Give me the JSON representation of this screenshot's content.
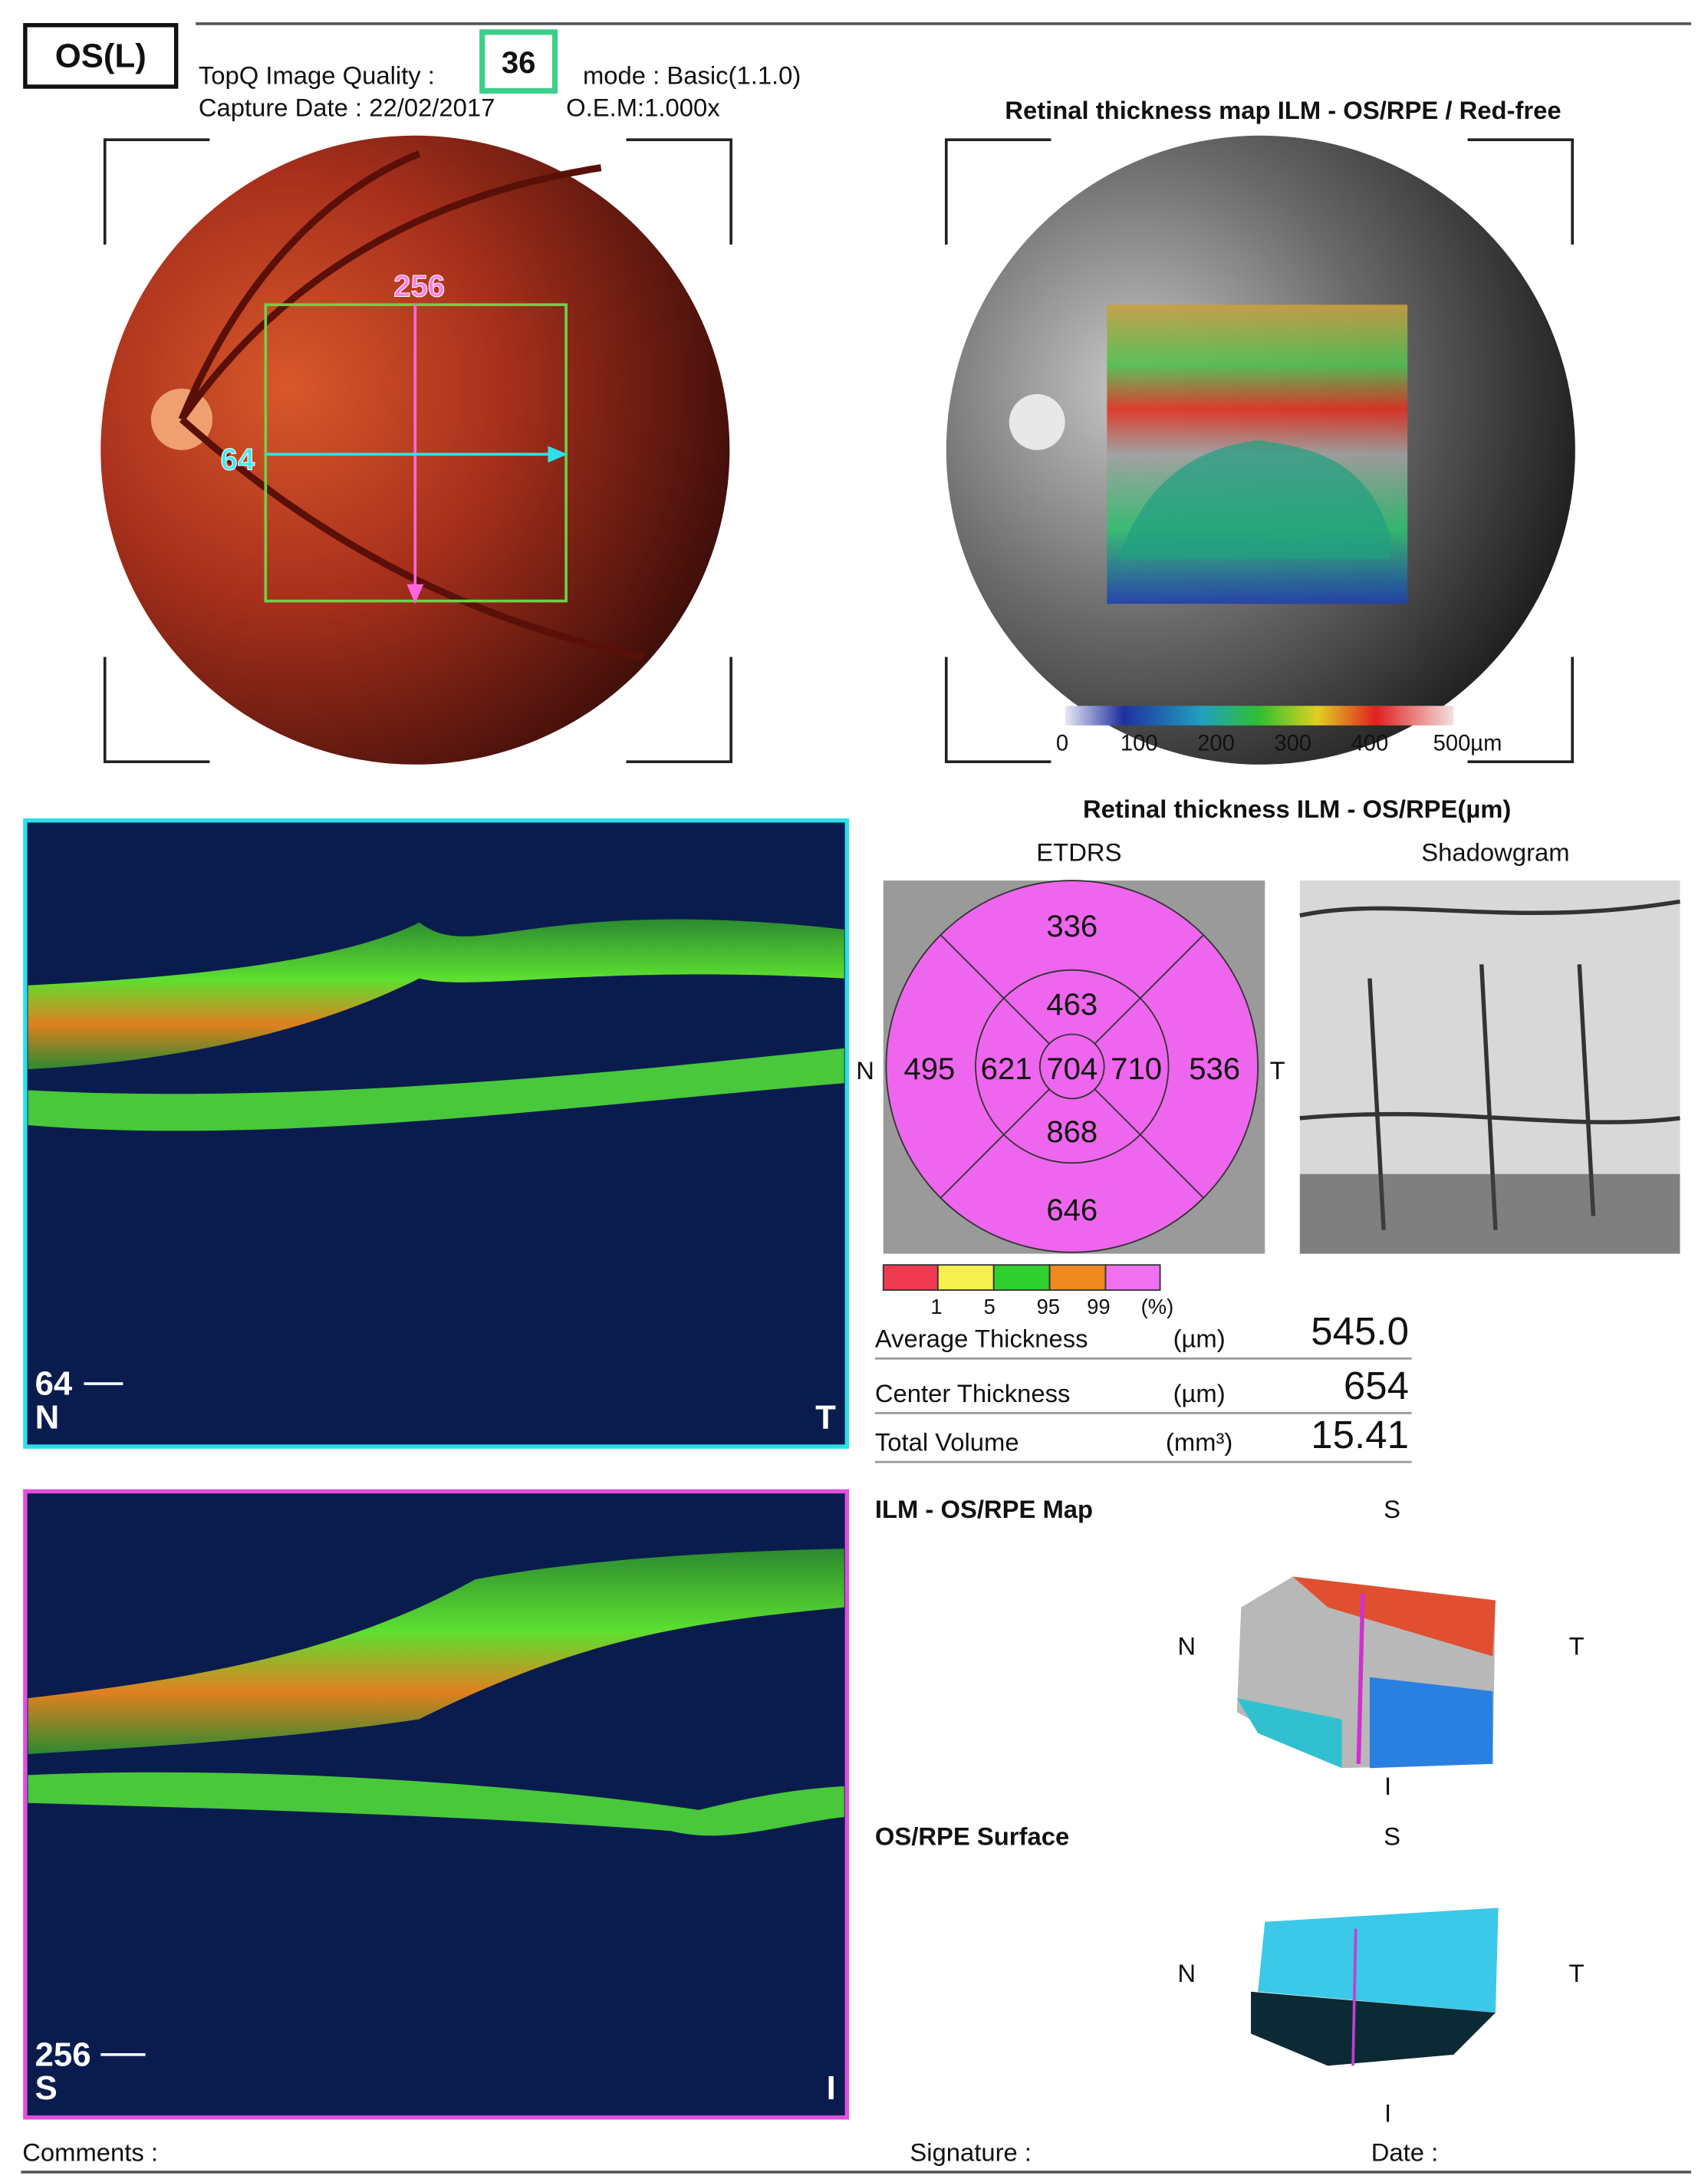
{
  "header": {
    "eye": "OS(L)",
    "quality_label": "TopQ Image Quality :",
    "quality": "36",
    "mode": "mode : Basic(1.1.0)",
    "capture_date": "Capture Date : 22/02/2017",
    "oem": "O.E.M:1.000x"
  },
  "fundus": {
    "scan_vertical": "256",
    "scan_horizontal": "64"
  },
  "thickness_map": {
    "title": "Retinal thickness map ILM - OS/RPE / Red-free",
    "scale_labels": [
      "0",
      "100",
      "200",
      "300",
      "400",
      "500µm"
    ]
  },
  "etdrs": {
    "title": "Retinal thickness ILM - OS/RPE(µm)",
    "etdrs_label": "ETDRS",
    "shadowgram_label": "Shadowgram",
    "outer_superior": "336",
    "inner_superior": "463",
    "outer_nasal": "495",
    "inner_nasal": "621",
    "center": "704",
    "inner_temporal": "710",
    "outer_temporal": "536",
    "inner_inferior": "868",
    "outer_inferior": "646",
    "nasal": "N",
    "temporal": "T",
    "legend_labels": [
      "1",
      "5",
      "95",
      "99",
      "(%)"
    ]
  },
  "stats": [
    {
      "label": "Average Thickness",
      "unit": "(µm)",
      "value": "545.0"
    },
    {
      "label": "Center Thickness",
      "unit": "(µm)",
      "value": "654"
    },
    {
      "label": "Total Volume",
      "unit": "(mm³)",
      "value": "15.41"
    }
  ],
  "bscans": [
    {
      "position": "64",
      "left": "N",
      "right": "T"
    },
    {
      "position": "256",
      "left": "S",
      "right": "I"
    }
  ],
  "maps": [
    {
      "title": "ILM - OS/RPE Map",
      "superior": "S",
      "nasal": "N",
      "temporal": "T",
      "inferior": "I"
    },
    {
      "title": "OS/RPE Surface",
      "superior": "S",
      "nasal": "N",
      "temporal": "T",
      "inferior": "I"
    }
  ],
  "footer": {
    "comments": "Comments :",
    "signature": "Signature :",
    "date": "Date :"
  }
}
